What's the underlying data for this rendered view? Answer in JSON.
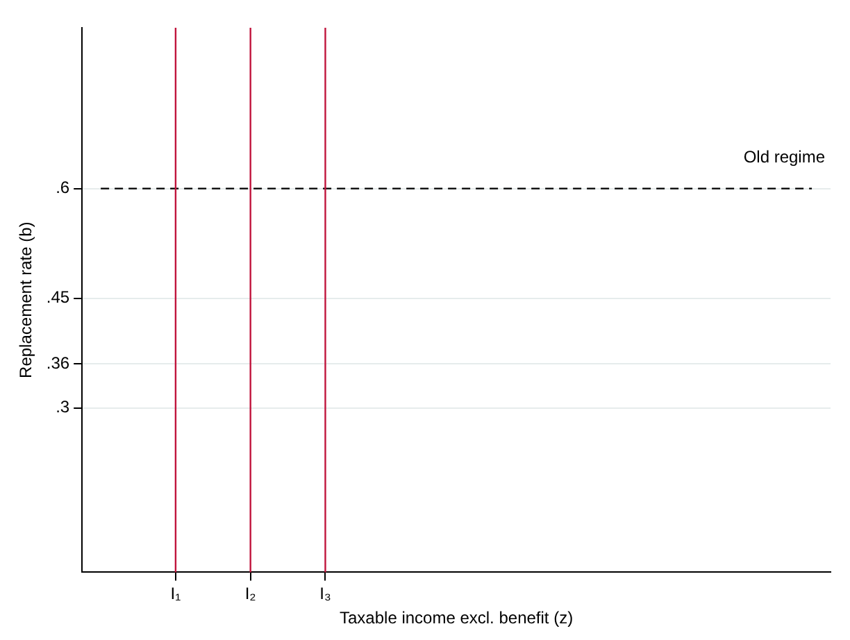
{
  "chart_data": {
    "type": "line",
    "xlabel": "Taxable income excl. benefit (z)",
    "ylabel": "Replacement rate (b)",
    "categories": [
      null,
      null,
      "I₁",
      null,
      "I₂",
      null,
      "I₃",
      null,
      null,
      null,
      null,
      null,
      null,
      null,
      null,
      null,
      null,
      null,
      null,
      null
    ],
    "ylim": [
      0.075,
      0.82
    ],
    "yticks": [
      {
        "value": 0.3,
        "label": ".3"
      },
      {
        "value": 0.36,
        "label": ".36"
      },
      {
        "value": 0.45,
        "label": ".45"
      },
      {
        "value": 0.6,
        "label": ".6"
      }
    ],
    "series": [
      {
        "name": "Old regime",
        "color": "#000000",
        "values": [
          0.6,
          0.6,
          0.6,
          0.6,
          0.6,
          0.6,
          0.6,
          0.6,
          0.6,
          0.6,
          0.6,
          0.6,
          0.6,
          0.6,
          0.6,
          0.6,
          0.6,
          0.6,
          0.6,
          0.6
        ],
        "line_style": "dashed"
      }
    ],
    "ref_lines": [
      {
        "axis": "x",
        "value": "I₁",
        "color": "#c0143c"
      },
      {
        "axis": "x",
        "value": "I₂",
        "color": "#c0143c"
      },
      {
        "axis": "x",
        "value": "I₃",
        "color": "#c0143c"
      }
    ],
    "grid": "y",
    "legend": false,
    "marker": "none"
  }
}
